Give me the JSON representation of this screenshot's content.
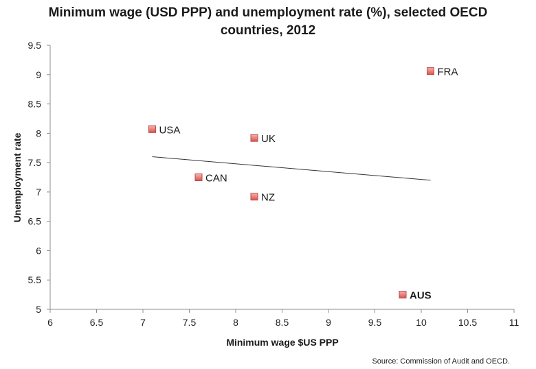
{
  "chart_data": {
    "type": "scatter",
    "title_lines": [
      "Minimum wage (USD PPP) and unemployment rate (%), selected OECD",
      "countries, 2012"
    ],
    "xlabel": "Minimum wage $US PPP",
    "ylabel": "Unemployment rate",
    "xlim": [
      6,
      11
    ],
    "ylim": [
      5,
      9.5
    ],
    "xticks": [
      6,
      6.5,
      7,
      7.5,
      8,
      8.5,
      9,
      9.5,
      10,
      10.5,
      11
    ],
    "yticks": [
      5,
      5.5,
      6,
      6.5,
      7,
      7.5,
      8,
      8.5,
      9,
      9.5
    ],
    "xtick_labels": [
      "6",
      "6.5",
      "7",
      "7.5",
      "8",
      "8.5",
      "9",
      "9.5",
      "10",
      "10.5",
      "11"
    ],
    "ytick_labels": [
      "5",
      "5.5",
      "6",
      "6.5",
      "7",
      "7.5",
      "8",
      "8.5",
      "9",
      "9.5"
    ],
    "points": [
      {
        "label": "USA",
        "x": 7.1,
        "y": 8.07,
        "bold": false
      },
      {
        "label": "UK",
        "x": 8.2,
        "y": 7.92,
        "bold": false
      },
      {
        "label": "CAN",
        "x": 7.6,
        "y": 7.25,
        "bold": false
      },
      {
        "label": "NZ",
        "x": 8.2,
        "y": 6.92,
        "bold": false
      },
      {
        "label": "FRA",
        "x": 10.1,
        "y": 9.06,
        "bold": false
      },
      {
        "label": "AUS",
        "x": 9.8,
        "y": 5.25,
        "bold": true
      }
    ],
    "trendline": {
      "x": [
        7.1,
        10.1
      ],
      "y": [
        7.6,
        7.2
      ]
    },
    "grid": false,
    "marker_color": "#e8706c",
    "marker_edge_color": "#b84a46",
    "trend_color": "#333333",
    "source": "Source: Commission of Audit and OECD."
  }
}
